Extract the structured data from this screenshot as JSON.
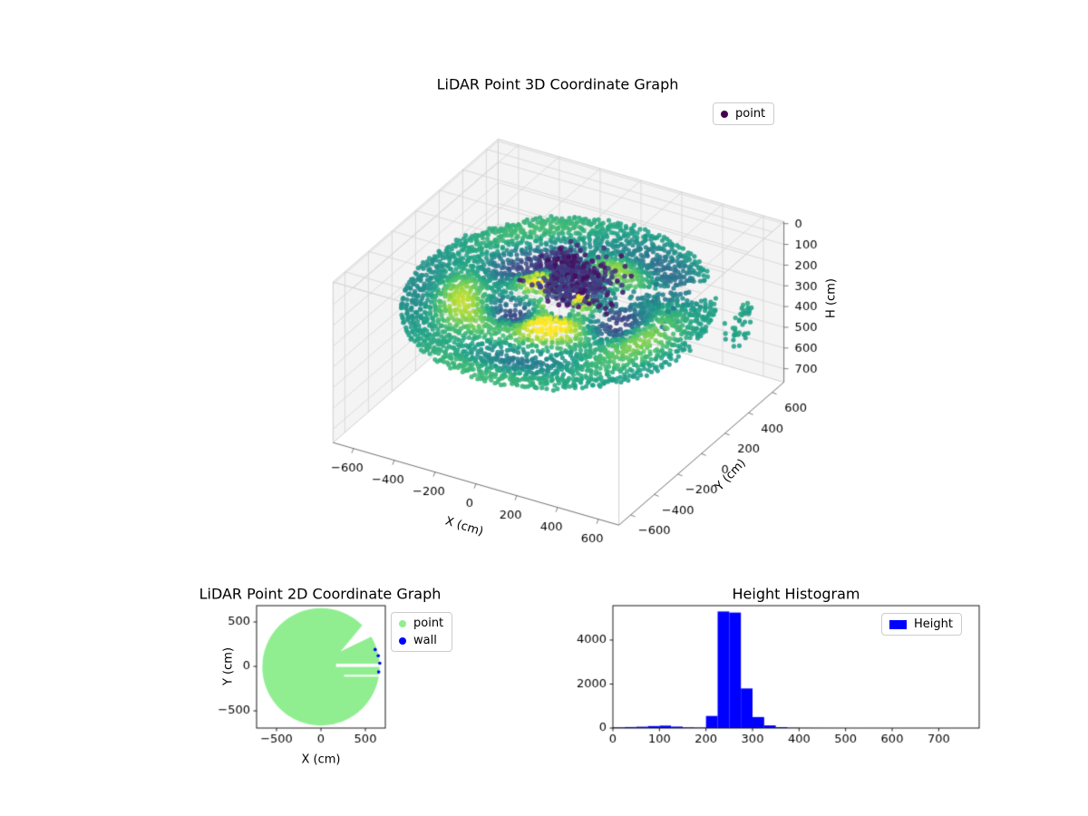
{
  "figure": {
    "background": "#ffffff"
  },
  "chart_data": [
    {
      "id": "lidar3d",
      "type": "scatter3d",
      "title": "LiDAR Point 3D Coordinate Graph",
      "xlabel": "X (cm)",
      "ylabel": "Y (cm)",
      "zlabel": "H (cm)",
      "xlim": [
        -700,
        700
      ],
      "ylim": [
        -700,
        700
      ],
      "zlim": [
        0,
        700
      ],
      "zaxis_inverted": true,
      "xticks": [
        -600,
        -400,
        -200,
        0,
        200,
        400,
        600
      ],
      "yticks": [
        -600,
        -400,
        -200,
        0,
        200,
        400,
        600
      ],
      "zticks": [
        0,
        100,
        200,
        300,
        400,
        500,
        600,
        700
      ],
      "legend": {
        "label": "point",
        "marker_color": "#440154",
        "location": "upper right"
      },
      "colormap": "viridis",
      "colormap_stops": [
        "#440154",
        "#46327e",
        "#365c8d",
        "#277f8e",
        "#1fa187",
        "#4ac16d",
        "#a0da39",
        "#fde725"
      ],
      "point_cloud": {
        "description": "Concentric LiDAR scan rings forming a tilted disc (H near 240 cm) plus a dark low-height cluster near the sensor",
        "rings": {
          "r_min": 70,
          "r_max": 665,
          "r_step": 20,
          "points_per_ring_factor": 0.3,
          "min_points": 24,
          "base_height": 242,
          "height_jitter": 14,
          "tilt": 35
        },
        "wave": {
          "base_v": 0.58,
          "amp1": 0.34,
          "freq_r1": 0.016,
          "freq_t1": 2.0,
          "amp2": 0.3,
          "freq_t2": 3.0,
          "freq_r2": 0.011,
          "front_boost": 0.2
        },
        "cluster": {
          "cx": 45,
          "cy": 55,
          "sigma": 80,
          "count": 360,
          "h_min": 60,
          "h_max": 230,
          "v_min": 0.02,
          "v_max": 0.24
        },
        "scatter_mid": {
          "count": 90,
          "x_range": [
            250,
            480
          ],
          "y_range": [
            80,
            330
          ],
          "h_mean": 255,
          "h_spread": 55,
          "v_base": 0.38,
          "v_spread": 0.14
        },
        "scatter_right": {
          "count": 40,
          "x_range": [
            600,
            670
          ],
          "y_range": [
            350,
            520
          ],
          "h_range": [
            300,
            450
          ],
          "v_base": 0.52,
          "v_spread": 0.1
        },
        "gaps": {
          "slit1": {
            "y": 12,
            "half_width": 18,
            "x_start": 170
          },
          "slit2": {
            "y": -105,
            "half_width": 10,
            "x_start": 260
          },
          "wedge": {
            "angle_start_deg": 30,
            "angle_end_deg": 46,
            "r_min": 260
          }
        }
      }
    },
    {
      "id": "lidar2d",
      "type": "scatter",
      "title": "LiDAR Point 2D Coordinate Graph",
      "xlabel": "X (cm)",
      "ylabel": "Y (cm)",
      "xticks": [
        -500,
        0,
        500
      ],
      "yticks": [
        -500,
        0,
        500
      ],
      "xlim": [
        -724,
        724
      ],
      "ylim": [
        -694,
        684
      ],
      "series": [
        {
          "name": "point",
          "color": "#90ee90"
        },
        {
          "name": "wall",
          "color": "#0000ff"
        }
      ],
      "disc": {
        "cx": 0,
        "cy": -5,
        "radius": 660,
        "wedge_gap": {
          "angle_start_deg": 30,
          "angle_end_deg": 46,
          "inner_radius": 280
        },
        "slits": [
          {
            "y": 12,
            "half_width": 18,
            "x_start": 170
          },
          {
            "y": -105,
            "half_width": 10,
            "x_start": 260
          }
        ]
      },
      "wall_points": [
        [
          610,
          190
        ],
        [
          645,
          120
        ],
        [
          662,
          35
        ],
        [
          650,
          -62
        ]
      ]
    },
    {
      "id": "height_hist",
      "type": "bar",
      "title": "Height Histogram",
      "legend": {
        "label": "Height",
        "color": "#0000ff",
        "location": "upper right"
      },
      "bar_color": "#0000ff",
      "bin_start": 0,
      "bin_width": 25,
      "counts": [
        30,
        45,
        60,
        90,
        110,
        65,
        30,
        20,
        550,
        5300,
        5250,
        1800,
        500,
        120,
        40,
        15,
        8,
        5,
        3,
        2,
        1,
        0,
        1,
        0,
        0,
        1,
        0,
        0,
        0,
        1,
        0,
        1
      ],
      "xticks": [
        0,
        100,
        200,
        300,
        400,
        500,
        600,
        700
      ],
      "yticks": [
        0,
        2000,
        4000
      ],
      "xlim": [
        0,
        787
      ],
      "ylim": [
        0,
        5565
      ]
    }
  ]
}
